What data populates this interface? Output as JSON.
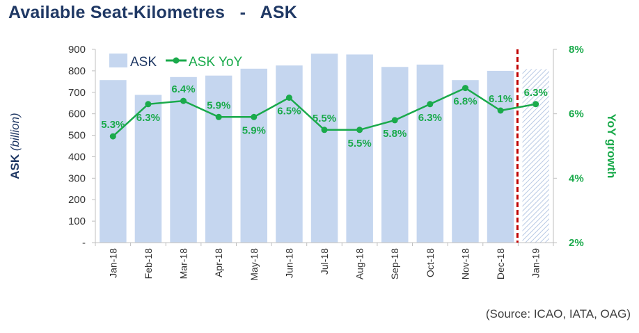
{
  "title": "Available Seat-Kilometres   -   ASK",
  "source": "(Source: ICAO, IATA, OAG)",
  "colors": {
    "bar": "#c5d6ef",
    "bar_forecast_hatch": "#b8c9e4",
    "line": "#1aaa4b",
    "divider": "#c00000",
    "title": "#1f3864"
  },
  "chart_data": {
    "type": "bar",
    "categories": [
      "Jan-18",
      "Feb-18",
      "Mar-18",
      "Apr-18",
      "May-18",
      "Jun-18",
      "Jul-18",
      "Aug-18",
      "Sep-18",
      "Oct-18",
      "Nov-18",
      "Dec-18",
      "Jan-19"
    ],
    "series": [
      {
        "name": "ASK",
        "axis": "left",
        "type": "bar",
        "values": [
          757,
          688,
          771,
          778,
          810,
          825,
          880,
          876,
          818,
          829,
          757,
          800,
          808
        ],
        "forecast_index": 12
      },
      {
        "name": "ASK YoY",
        "axis": "right",
        "type": "line",
        "values": [
          5.3,
          6.3,
          6.4,
          5.9,
          5.9,
          6.5,
          5.5,
          5.5,
          5.8,
          6.3,
          6.8,
          6.1,
          6.3
        ],
        "labels": [
          "5.3%",
          "6.3%",
          "6.4%",
          "5.9%",
          "5.9%",
          "6.5%",
          "5.5%",
          "5.5%",
          "5.8%",
          "6.3%",
          "6.8%",
          "6.1%",
          "6.3%"
        ],
        "label_position": [
          "above",
          "below",
          "above",
          "above",
          "below",
          "below",
          "above",
          "below",
          "below",
          "below",
          "below",
          "above",
          "above"
        ]
      }
    ],
    "ylabel": "ASK",
    "ylabel_unit": "(billion)",
    "y2label": "YoY growth",
    "ylim": [
      0,
      900
    ],
    "yticks": [
      0,
      100,
      200,
      300,
      400,
      500,
      600,
      700,
      800,
      900
    ],
    "ytick_labels": [
      "-",
      "100",
      "200",
      "300",
      "400",
      "500",
      "600",
      "700",
      "800",
      "900"
    ],
    "y2lim": [
      2,
      8
    ],
    "y2ticks": [
      2,
      4,
      6,
      8
    ],
    "y2tick_labels": [
      "2%",
      "4%",
      "6%",
      "8%"
    ],
    "divider_after_index": 11,
    "legend": {
      "position": "top-left",
      "entries": [
        "ASK",
        "ASK YoY"
      ]
    },
    "grid": false
  }
}
